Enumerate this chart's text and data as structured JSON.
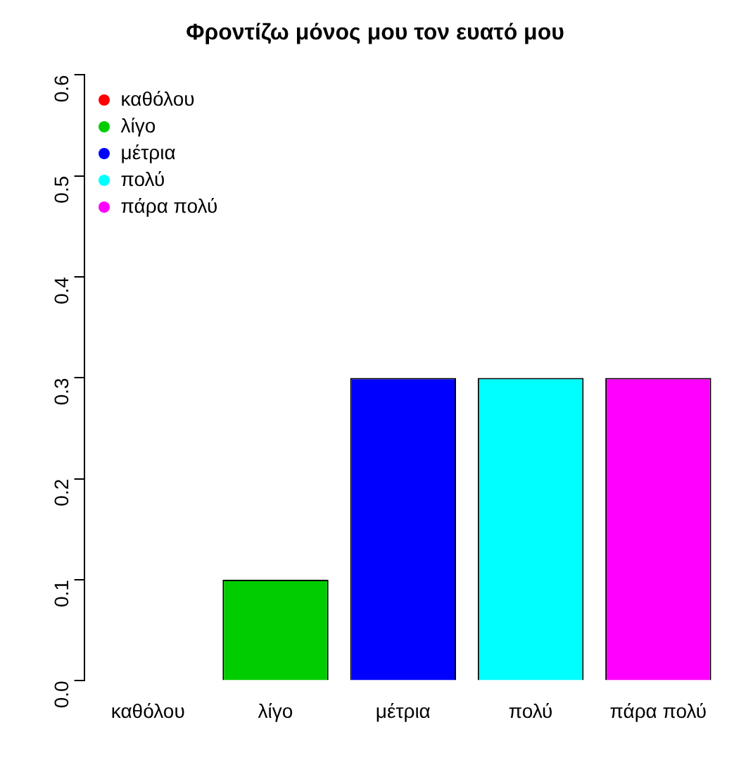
{
  "chart_data": {
    "type": "bar",
    "title": "Φροντίζω μόνος μου τον ευατό μου",
    "categories": [
      "καθόλου",
      "λίγο",
      "μέτρια",
      "πολύ",
      "πάρα πολύ"
    ],
    "series": [
      {
        "name": "καθόλου",
        "color": "#ff0000",
        "values": [
          0,
          null,
          null,
          null,
          null
        ]
      },
      {
        "name": "λίγο",
        "color": "#00cd00",
        "values": [
          null,
          0.1,
          null,
          null,
          null
        ]
      },
      {
        "name": "μέτρια",
        "color": "#0000ff",
        "values": [
          null,
          null,
          0.3,
          null,
          null
        ]
      },
      {
        "name": "πολύ",
        "color": "#00ffff",
        "values": [
          null,
          null,
          null,
          0.3,
          null
        ]
      },
      {
        "name": "πάρα πολύ",
        "color": "#ff00ff",
        "values": [
          null,
          null,
          null,
          null,
          0.3
        ]
      }
    ],
    "ylim": [
      0,
      0.6
    ],
    "yticks": [
      {
        "value": 0,
        "label": "0.0"
      },
      0.1,
      0.2,
      0.3,
      0.4,
      0.5,
      0.6
    ],
    "grid": false,
    "legend": "top left"
  }
}
